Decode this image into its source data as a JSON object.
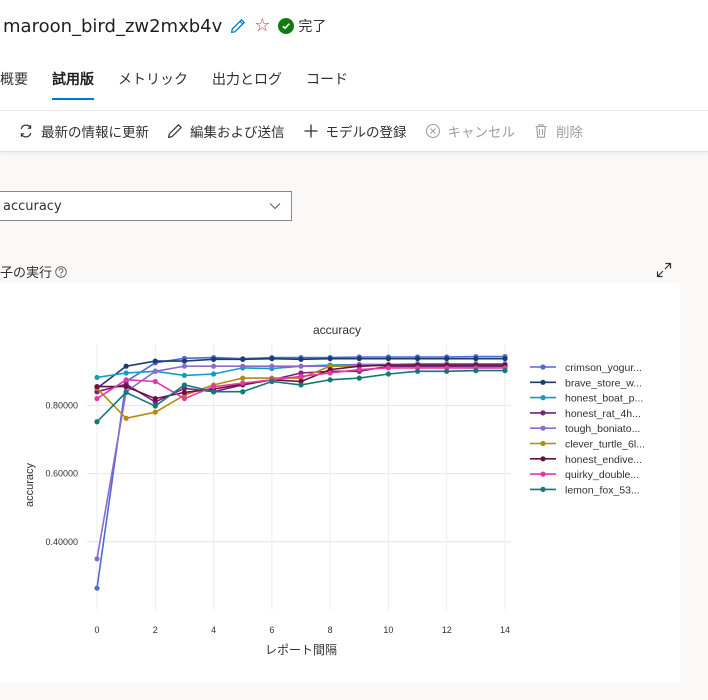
{
  "header": {
    "title": "maroon_bird_zw2mxb4v",
    "status_label": "完了"
  },
  "tabs": [
    {
      "label": "概要",
      "active": false
    },
    {
      "label": "試用版",
      "active": true
    },
    {
      "label": "メトリック",
      "active": false
    },
    {
      "label": "出力とログ",
      "active": false
    },
    {
      "label": "コード",
      "active": false
    }
  ],
  "toolbar": {
    "refresh_label": "最新の情報に更新",
    "edit_label": "編集および送信",
    "register_label": "モデルの登録",
    "cancel_label": "キャンセル",
    "delete_label": "削除"
  },
  "metric_select": {
    "value": "accuracy"
  },
  "section": {
    "title": "子の実行"
  },
  "colors": {
    "accent": "#0078d4",
    "success": "#107c10",
    "star": "#d13438"
  },
  "chart_data": {
    "type": "line",
    "title": "accuracy",
    "xlabel": "レポート間隔",
    "ylabel": "accuracy",
    "x": [
      0,
      1,
      2,
      3,
      4,
      5,
      6,
      7,
      8,
      9,
      10,
      11,
      12,
      13,
      14
    ],
    "xticks": [
      0,
      2,
      4,
      6,
      8,
      10,
      12,
      14
    ],
    "xlim": [
      0,
      14
    ],
    "yticks": [
      0.4,
      0.6,
      0.8
    ],
    "ytick_labels": [
      "0.40000",
      "0.60000",
      "0.80000"
    ],
    "ylim": [
      0.2,
      0.98
    ],
    "legend": "right",
    "grid": true,
    "series": [
      {
        "name": "crimson_yogur...",
        "color": "#4e6bd6",
        "values": [
          0.264,
          0.87,
          0.925,
          0.938,
          0.94,
          0.937,
          0.94,
          0.94,
          0.94,
          0.942,
          0.942,
          0.942,
          0.942,
          0.943,
          0.943
        ]
      },
      {
        "name": "brave_store_w...",
        "color": "#1c3c6e",
        "values": [
          0.85,
          0.915,
          0.93,
          0.93,
          0.935,
          0.935,
          0.937,
          0.935,
          0.937,
          0.937,
          0.937,
          0.937,
          0.937,
          0.937,
          0.937
        ]
      },
      {
        "name": "honest_boat_p...",
        "color": "#149dc4",
        "values": [
          0.882,
          0.895,
          0.9,
          0.888,
          0.892,
          0.91,
          0.908,
          0.915,
          0.918,
          0.92,
          0.92,
          0.922,
          0.922,
          0.922,
          0.922
        ]
      },
      {
        "name": "honest_rat_4h...",
        "color": "#7a1f87",
        "values": [
          0.84,
          0.862,
          0.81,
          0.85,
          0.84,
          0.86,
          0.875,
          0.895,
          0.9,
          0.9,
          0.915,
          0.915,
          0.915,
          0.915,
          0.915
        ]
      },
      {
        "name": "tough_boniato...",
        "color": "#8b6bcc",
        "values": [
          0.35,
          0.84,
          0.9,
          0.915,
          0.915,
          0.915,
          0.915,
          0.915,
          0.915,
          0.92,
          0.92,
          0.92,
          0.92,
          0.92,
          0.92
        ]
      },
      {
        "name": "clever_turtle_6l...",
        "color": "#b48c0c",
        "values": [
          0.85,
          0.762,
          0.78,
          0.83,
          0.86,
          0.88,
          0.88,
          0.88,
          0.915,
          0.915,
          0.918,
          0.918,
          0.918,
          0.918,
          0.918
        ]
      },
      {
        "name": "honest_endive...",
        "color": "#6b0f3f",
        "values": [
          0.855,
          0.855,
          0.82,
          0.838,
          0.848,
          0.862,
          0.875,
          0.87,
          0.905,
          0.915,
          0.918,
          0.918,
          0.918,
          0.918,
          0.918
        ]
      },
      {
        "name": "quirky_double...",
        "color": "#e03aa8",
        "values": [
          0.82,
          0.875,
          0.87,
          0.82,
          0.855,
          0.865,
          0.875,
          0.885,
          0.895,
          0.905,
          0.91,
          0.91,
          0.91,
          0.91,
          0.91
        ]
      },
      {
        "name": "lemon_fox_53...",
        "color": "#127a76",
        "values": [
          0.752,
          0.838,
          0.798,
          0.86,
          0.84,
          0.84,
          0.87,
          0.86,
          0.875,
          0.88,
          0.892,
          0.9,
          0.9,
          0.902,
          0.902
        ]
      }
    ]
  }
}
